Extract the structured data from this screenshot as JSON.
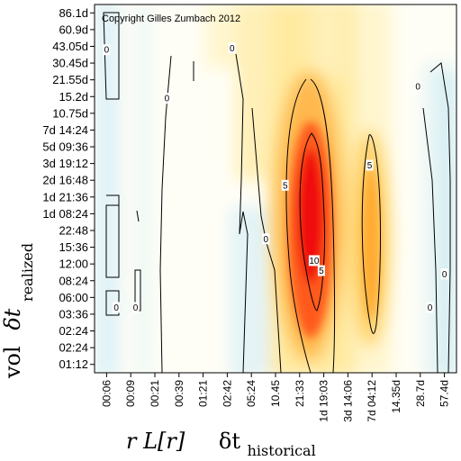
{
  "chart_data": {
    "type": "heatmap",
    "copyright": "Copyright Gilles Zumbach 2012",
    "x_tick_labels": [
      "00:06",
      "00:09",
      "00:21",
      "00:39",
      "01:21",
      "02:42",
      "05:24",
      "10.45",
      "21:33",
      "1d 19:03",
      "3d 14:06",
      "7d 04:12",
      "14.35d",
      "28.7d",
      "57.4d"
    ],
    "y_tick_labels": [
      "01:12",
      "02:24",
      "02:24",
      "03:36",
      "06:00",
      "08:24",
      "12:00",
      "15:36",
      "22:48",
      "1d 08:24",
      "1d 21:36",
      "2d 16:48",
      "3d 19:12",
      "5d 09:36",
      "7d 14:24",
      "10.75d",
      "15.2d",
      "21.55d",
      "30.45d",
      "43.05d",
      "60.9d",
      "86.1d"
    ],
    "x_title_main": "r L[r]",
    "x_title_delta": "δt",
    "x_title_sub": "historical",
    "y_title_main": "vol",
    "y_title_delta": "δt",
    "y_title_sub": "realized",
    "contour_labels": [
      {
        "text": "0",
        "x": 0,
        "y": 18.8
      },
      {
        "text": "0",
        "x": 2.5,
        "y": 15.9
      },
      {
        "text": "0",
        "x": 5.2,
        "y": 18.9
      },
      {
        "text": "0",
        "x": 12.9,
        "y": 16.6
      },
      {
        "text": "0",
        "x": 0.4,
        "y": 3.4
      },
      {
        "text": "0",
        "x": 1.2,
        "y": 3.4
      },
      {
        "text": "0",
        "x": 6.6,
        "y": 7.5
      },
      {
        "text": "0",
        "x": 13.4,
        "y": 3.4
      },
      {
        "text": "0",
        "x": 14.0,
        "y": 5.4
      },
      {
        "text": "5",
        "x": 7.4,
        "y": 10.7
      },
      {
        "text": "5",
        "x": 10.9,
        "y": 11.9
      },
      {
        "text": "5",
        "x": 8.9,
        "y": 5.6
      },
      {
        "text": "10",
        "x": 8.6,
        "y": 6.2
      }
    ]
  }
}
